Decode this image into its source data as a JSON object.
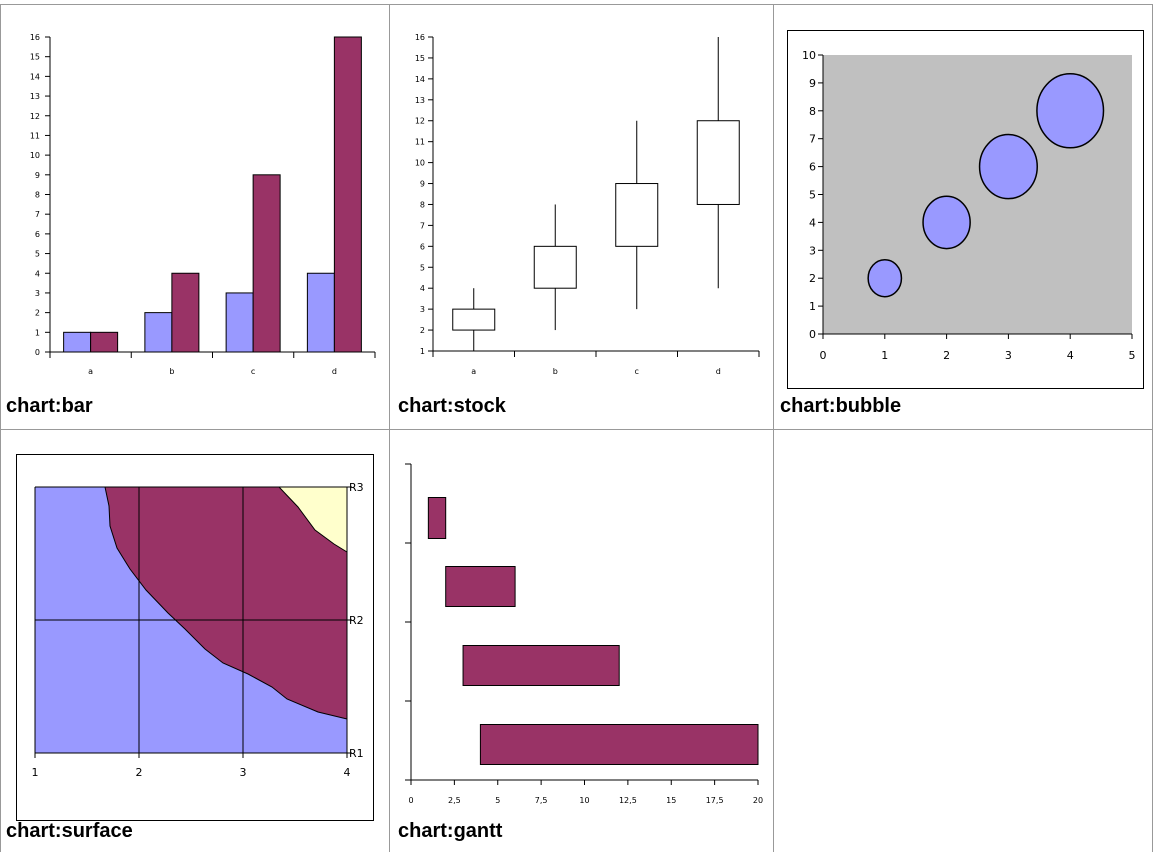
{
  "colors": {
    "series_light": "#9999ff",
    "series_dark": "#993366",
    "plot_gray": "#c0c0c0",
    "surface_light": "#ffffcc",
    "grid_line": "#808080"
  },
  "charts": [
    {
      "caption": "chart:bar",
      "chart_data": {
        "type": "bar",
        "categories": [
          "a",
          "b",
          "c",
          "d"
        ],
        "series": [
          {
            "values": [
              1,
              2,
              3,
              4
            ],
            "color": "#9999ff"
          },
          {
            "values": [
              1,
              4,
              9,
              16
            ],
            "color": "#993366"
          }
        ],
        "ylim": [
          0,
          16
        ],
        "yticks": [
          "0",
          "1",
          "2",
          "3",
          "4",
          "5",
          "6",
          "7",
          "8",
          "9",
          "10",
          "11",
          "12",
          "13",
          "14",
          "15",
          "16"
        ]
      }
    },
    {
      "caption": "chart:stock",
      "chart_data": {
        "type": "candlestick",
        "categories": [
          "a",
          "b",
          "c",
          "d"
        ],
        "boxes": [
          {
            "low": 1,
            "open": 2,
            "close": 3,
            "high": 4
          },
          {
            "low": 2,
            "open": 4,
            "close": 6,
            "high": 8
          },
          {
            "low": 3,
            "open": 6,
            "close": 9,
            "high": 12
          },
          {
            "low": 4,
            "open": 8,
            "close": 12,
            "high": 16
          }
        ],
        "ylim": [
          1,
          16
        ],
        "yticks": [
          "1",
          "2",
          "3",
          "4",
          "5",
          "6",
          "7",
          "8",
          "9",
          "10",
          "11",
          "12",
          "13",
          "14",
          "15",
          "16"
        ]
      }
    },
    {
      "caption": "chart:bubble",
      "chart_data": {
        "type": "bubble",
        "points": [
          {
            "x": 1,
            "y": 2,
            "size": 1
          },
          {
            "x": 2,
            "y": 4,
            "size": 2
          },
          {
            "x": 3,
            "y": 6,
            "size": 3
          },
          {
            "x": 4,
            "y": 8,
            "size": 4
          }
        ],
        "xlim": [
          0,
          5
        ],
        "ylim": [
          0,
          10
        ],
        "xticks": [
          "0",
          "1",
          "2",
          "3",
          "4",
          "5"
        ],
        "yticks": [
          "0",
          "1",
          "2",
          "3",
          "4",
          "5",
          "6",
          "7",
          "8",
          "9",
          "10"
        ],
        "plot_background": "#c0c0c0",
        "bubble_color": "#9999ff"
      }
    },
    {
      "caption": "chart:surface",
      "chart_data": {
        "type": "surface",
        "x": [
          1,
          2,
          3,
          4
        ],
        "xticks": [
          "1",
          "2",
          "3",
          "4"
        ],
        "rows": [
          "R1",
          "R2",
          "R3"
        ],
        "bands": [
          {
            "color": "#9999ff"
          },
          {
            "color": "#993366"
          },
          {
            "color": "#ffffcc"
          }
        ]
      }
    },
    {
      "caption": "chart:gantt",
      "chart_data": {
        "type": "gantt",
        "bars": [
          {
            "start": 1,
            "end": 2
          },
          {
            "start": 2,
            "end": 6
          },
          {
            "start": 3,
            "end": 12
          },
          {
            "start": 4,
            "end": 20
          }
        ],
        "xlim": [
          0,
          20
        ],
        "xticks": [
          "0",
          "2,5",
          "5",
          "7,5",
          "10",
          "12,5",
          "15",
          "17,5",
          "20"
        ],
        "bar_color": "#993366"
      }
    }
  ]
}
